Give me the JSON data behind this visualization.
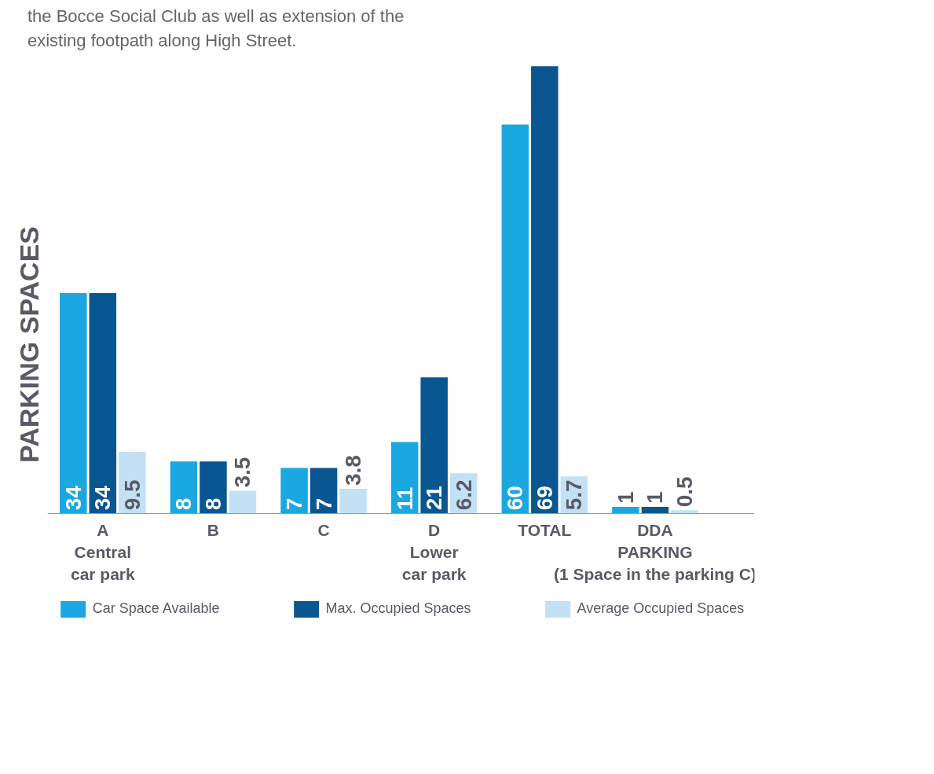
{
  "chart_data": {
    "type": "bar",
    "ylabel": "PARKING SPACES",
    "annotations": [
      "the Bocce Social Club as well as extension of the existing footpath along High Street."
    ],
    "categories": [
      "A\nCentral\ncar park",
      "B",
      "C",
      "D\nLower\ncar park",
      "TOTAL",
      "DDA\nPARKING\n(1 Space in the parking C)"
    ],
    "series": [
      {
        "name": "Car Space Available",
        "color": "#1ba8e0",
        "values": [
          34,
          8,
          7,
          11,
          60,
          1
        ]
      },
      {
        "name": "Max. Occupied Spaces",
        "color": "#0a5690",
        "values": [
          34,
          8,
          7,
          21,
          69,
          1
        ]
      },
      {
        "name": "Average Occupied Spaces",
        "color": "#c2e1f4",
        "values": [
          9.5,
          3.5,
          3.8,
          6.2,
          5.7,
          0.5
        ]
      }
    ],
    "data_labels": true,
    "legend": "bottom"
  }
}
